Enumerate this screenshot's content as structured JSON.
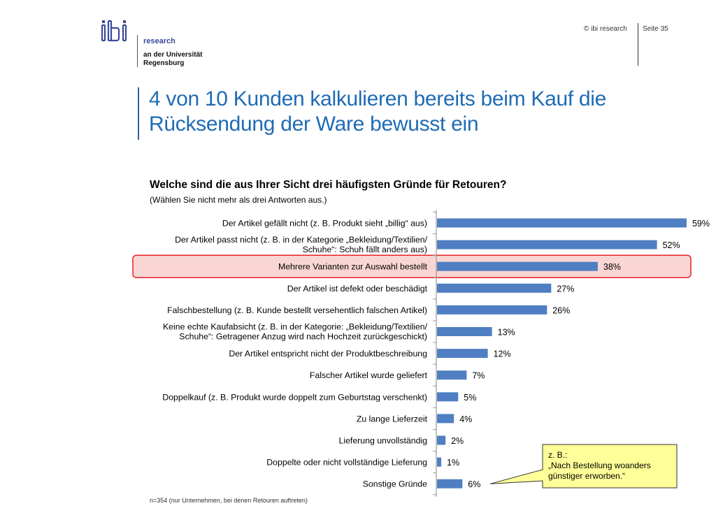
{
  "header": {
    "logo_text": "ibi",
    "logo_research": "research",
    "logo_line1": "an der Universität",
    "logo_line2": "Regensburg",
    "copyright": "© ibi research",
    "page": "Seite 35"
  },
  "title": "4 von 10 Kunden kalkulieren bereits beim Kauf die Rücksendung der Ware bewusst ein",
  "question": "Welche sind die aus Ihrer Sicht drei häufigsten Gründe für Retouren?",
  "question_note": "(Wählen Sie nicht mehr als drei Antworten aus.)",
  "footnote": "n=354 (nur Unternehmen, bei denen Retouren auftreten)",
  "callout": {
    "line1": "z. B.:",
    "line2": "„Nach Bestellung woanders",
    "line3": "günstiger erworben.“"
  },
  "colors": {
    "bar": "#4f7fc2",
    "highlight_fill": "#f9d6d3",
    "highlight_border": "#e8202a",
    "callout_fill": "#ffff99",
    "title": "#1f6bb5"
  },
  "chart_data": {
    "type": "bar",
    "orientation": "horizontal",
    "highlight_index": 2,
    "callout_index": 12,
    "categories": [
      [
        "Der Artikel gefällt nicht (z. B. Produkt sieht „billig“ aus)"
      ],
      [
        "Der Artikel passt nicht (z. B. in der Kategorie „Bekleidung/Textilien/",
        "Schuhe“: Schuh fällt anders aus)"
      ],
      [
        "Mehrere Varianten zur Auswahl bestellt"
      ],
      [
        "Der Artikel ist defekt oder beschädigt"
      ],
      [
        "Falschbestellung (z. B. Kunde bestellt versehentlich falschen Artikel)"
      ],
      [
        "Keine echte Kaufabsicht (z. B. in der Kategorie: „Bekleidung/Textilien/",
        "Schuhe“: Getragener Anzug wird nach Hochzeit zurückgeschickt)"
      ],
      [
        "Der Artikel entspricht nicht der Produktbeschreibung"
      ],
      [
        "Falscher Artikel wurde geliefert"
      ],
      [
        "Doppelkauf (z. B. Produkt wurde doppelt zum Geburtstag verschenkt)"
      ],
      [
        "Zu lange Lieferzeit"
      ],
      [
        "Lieferung unvollständig"
      ],
      [
        "Doppelte oder nicht vollständige Lieferung"
      ],
      [
        "Sonstige Gründe"
      ]
    ],
    "values": [
      59,
      52,
      38,
      27,
      26,
      13,
      12,
      7,
      5,
      4,
      2,
      1,
      6
    ],
    "value_labels": [
      "59%",
      "52%",
      "38%",
      "27%",
      "26%",
      "13%",
      "12%",
      "7%",
      "5%",
      "4%",
      "2%",
      "1%",
      "6%"
    ],
    "unit": "%",
    "xlim": [
      0,
      60
    ]
  }
}
